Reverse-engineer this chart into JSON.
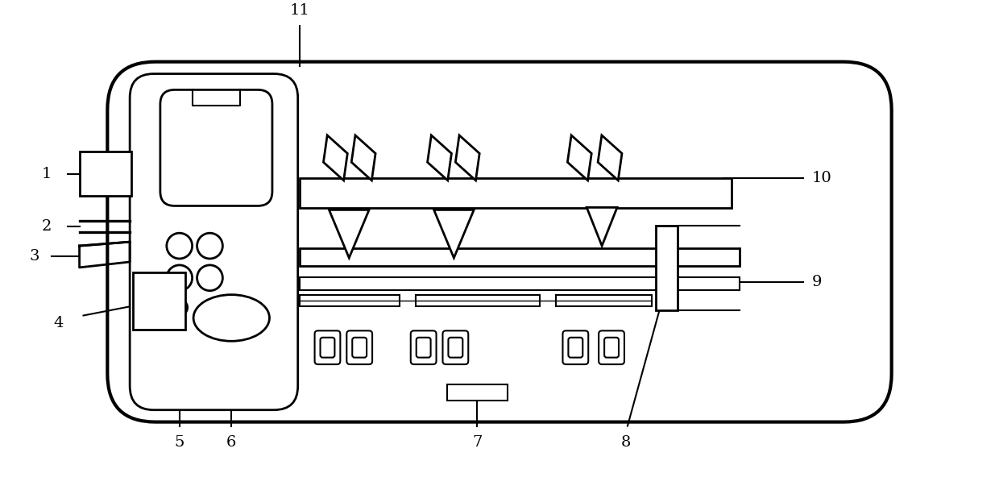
{
  "bg_color": "#ffffff",
  "line_color": "#000000",
  "lw": 2.0,
  "tlw": 1.5,
  "fig_width": 12.4,
  "fig_height": 6.08
}
